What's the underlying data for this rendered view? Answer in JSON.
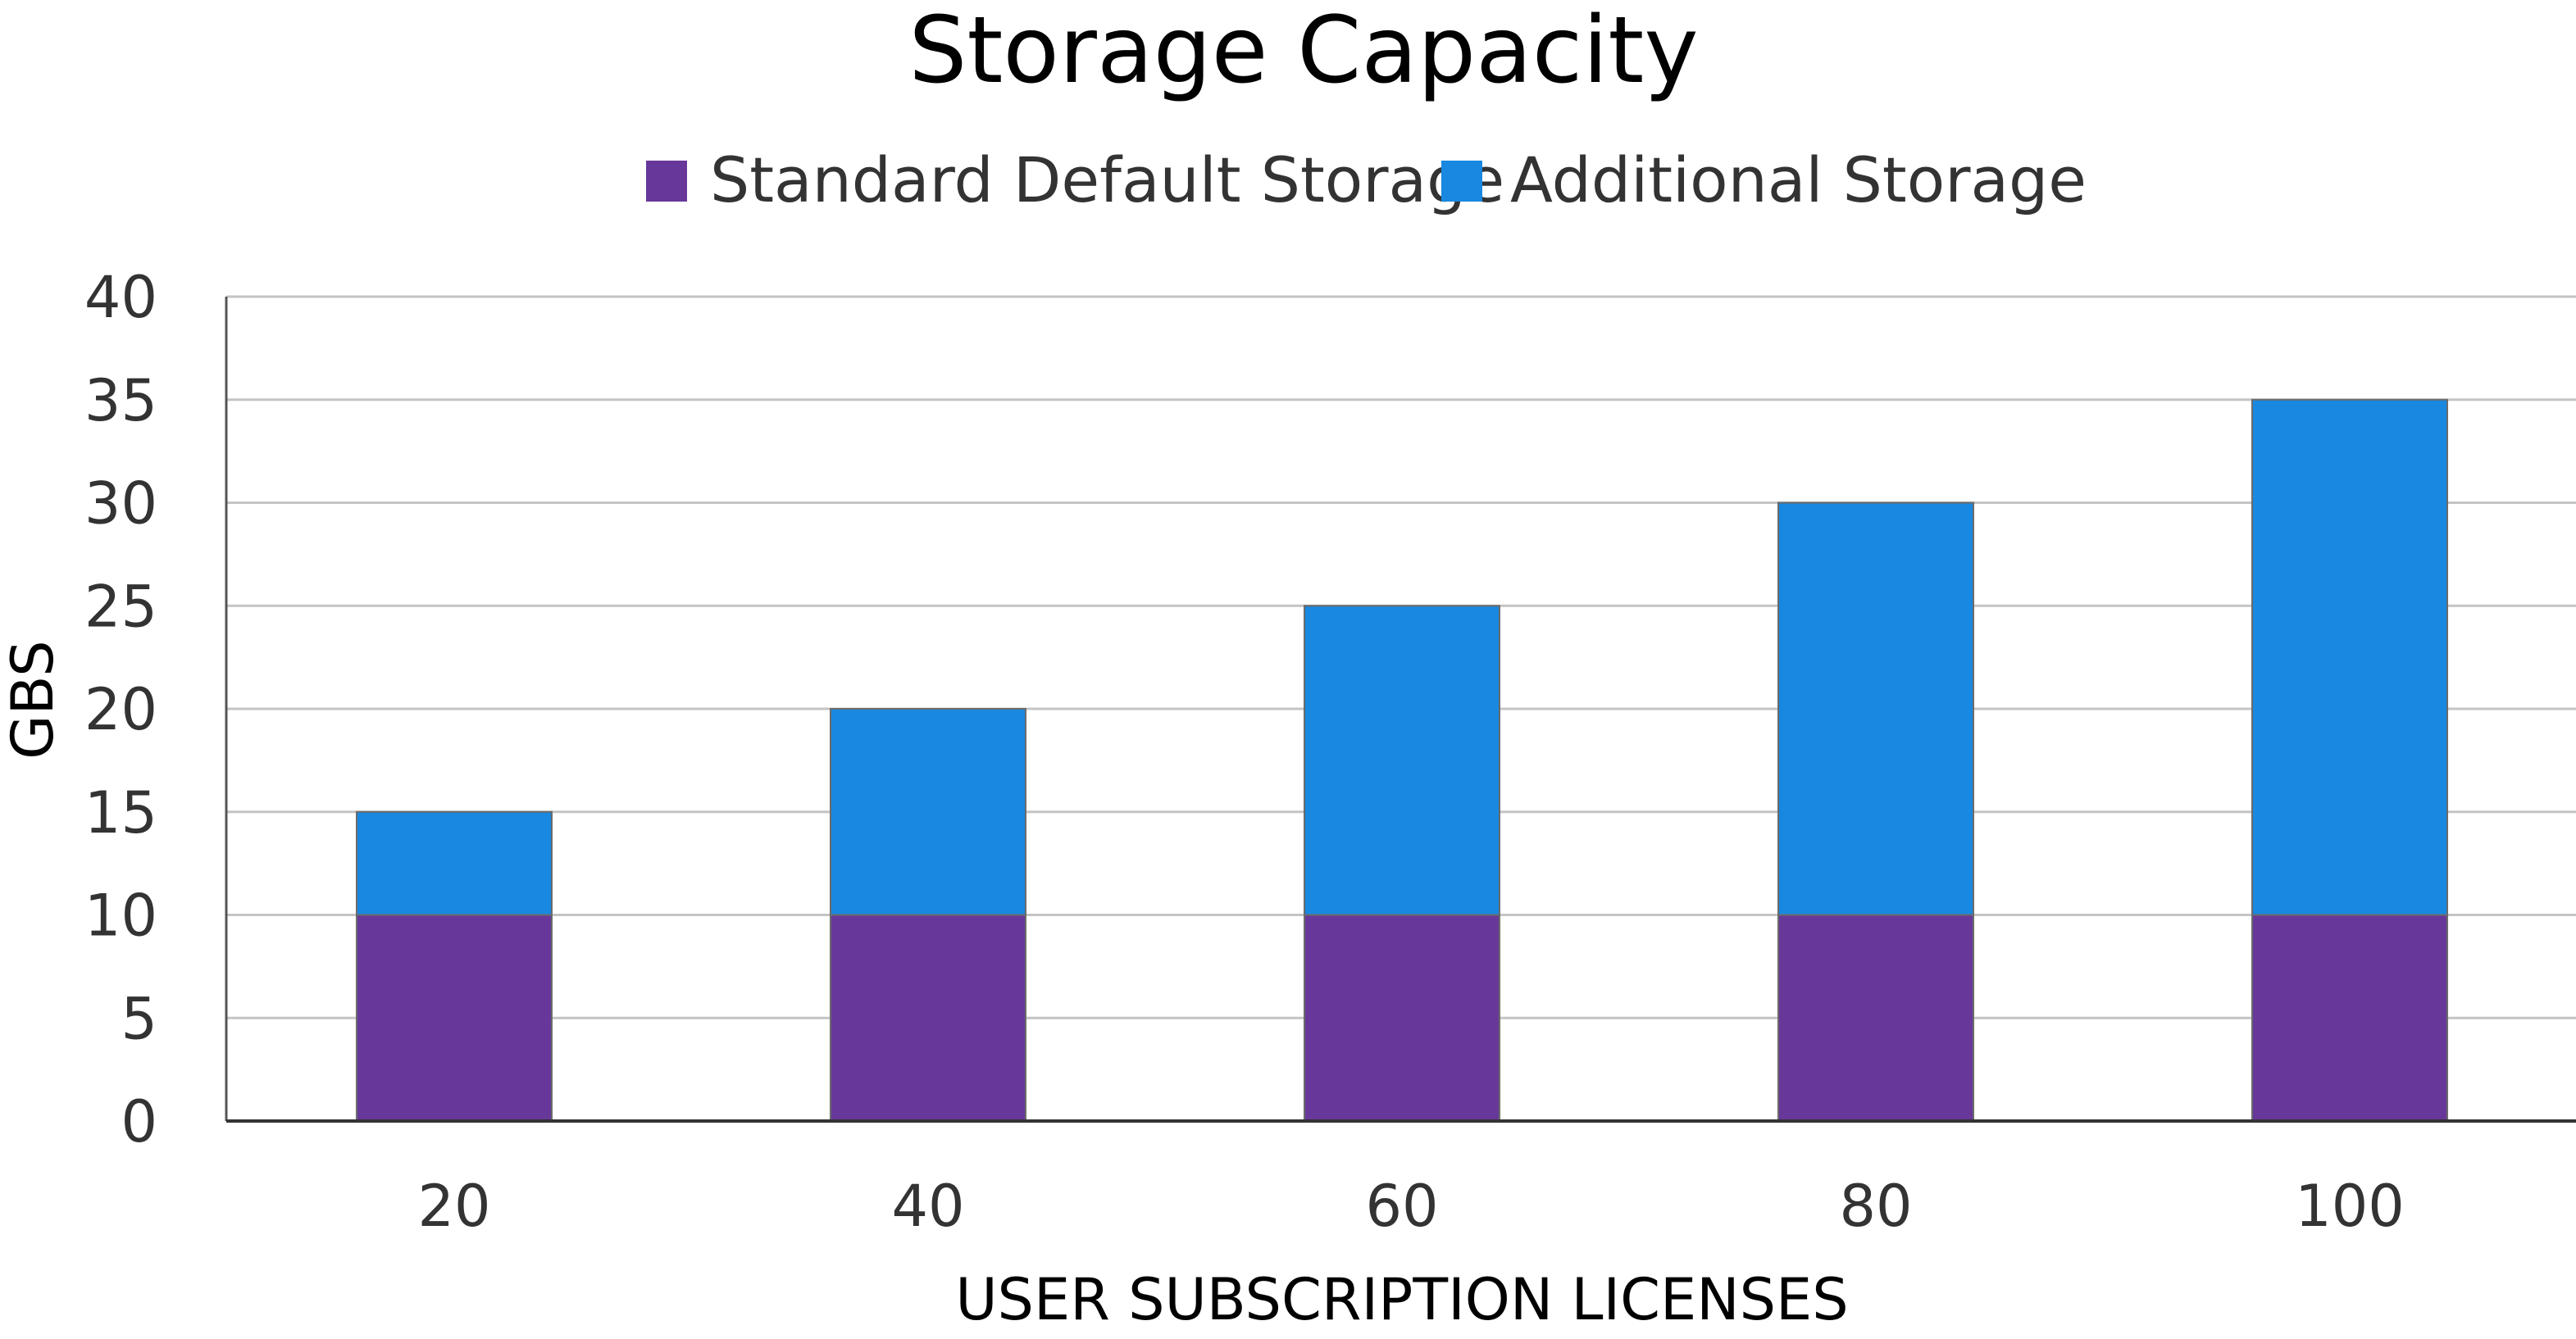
{
  "chart_data": {
    "type": "bar",
    "stacked": true,
    "title": "Storage Capacity",
    "xlabel": "USER SUBSCRIPTION LICENSES",
    "ylabel": "GBS",
    "categories": [
      "20",
      "40",
      "60",
      "80",
      "100"
    ],
    "series": [
      {
        "name": "Standard Default Storage",
        "color": "#673899",
        "values": [
          10,
          10,
          10,
          10,
          10
        ]
      },
      {
        "name": "Additional Storage",
        "color": "#1888E0",
        "values": [
          5,
          10,
          15,
          20,
          25
        ]
      }
    ],
    "ylim": [
      0,
      40
    ],
    "yticks": [
      "0",
      "5",
      "10",
      "15",
      "20",
      "25",
      "30",
      "35",
      "40"
    ],
    "grid": true,
    "legend_position": "top-center"
  }
}
